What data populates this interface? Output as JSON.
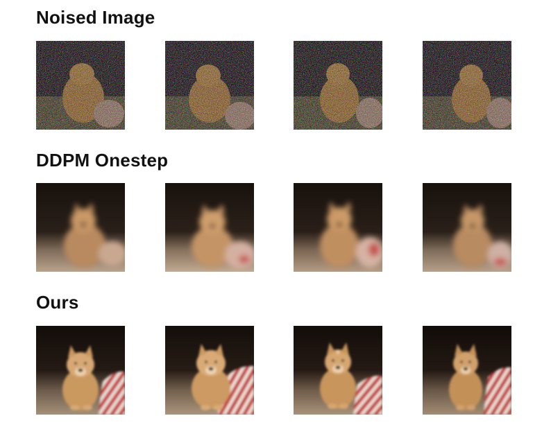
{
  "rows": [
    {
      "title": "Noised Image",
      "kind": "noised",
      "image_count": 4
    },
    {
      "title": "DDPM Onestep",
      "kind": "onestep",
      "image_count": 4
    },
    {
      "title": "Ours",
      "kind": "ours",
      "image_count": 4
    }
  ],
  "image_subject": "chow-chow-dog-photo",
  "colors": {
    "background": "#ffffff",
    "title_text": "#111111",
    "dark_backdrop": "#1a1410",
    "fur": "#c99866",
    "floor": "#8b7562",
    "blanket_red": "#c23a3a"
  }
}
